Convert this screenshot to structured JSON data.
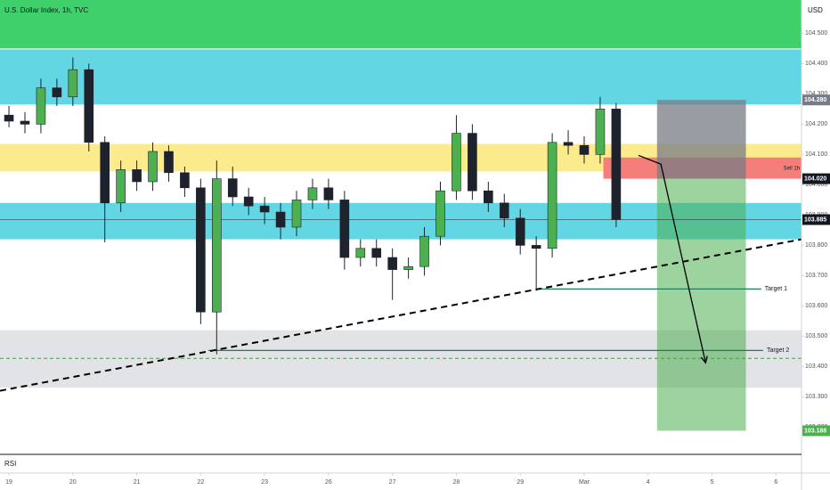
{
  "chart_data": {
    "type": "candlestick",
    "title": "U.S. Dollar Index, 1h, TVC",
    "currency": "USD",
    "pane_label": "RSI",
    "x": [
      0,
      0.25,
      0.5,
      0.75,
      1,
      1.25,
      1.5,
      1.75,
      2,
      2.25,
      2.5,
      2.75,
      3,
      3.25,
      3.5,
      3.75,
      4,
      4.25,
      4.5,
      4.75,
      5,
      5.25,
      5.5,
      5.75,
      6,
      6.25,
      6.5,
      6.75,
      7,
      7.25,
      7.5,
      7.75,
      8,
      8.25,
      8.5,
      8.75,
      9,
      9.25,
      9.5
    ],
    "open": [
      104.23,
      104.21,
      104.2,
      104.32,
      104.29,
      104.38,
      104.14,
      103.94,
      104.05,
      104.01,
      104.11,
      104.04,
      103.99,
      103.58,
      104.02,
      103.96,
      103.93,
      103.91,
      103.86,
      103.95,
      103.99,
      103.95,
      103.76,
      103.79,
      103.76,
      103.72,
      103.73,
      103.83,
      103.98,
      104.17,
      103.98,
      103.94,
      103.89,
      103.8,
      103.79,
      104.14,
      104.13,
      104.1,
      104.25
    ],
    "high": [
      104.26,
      104.24,
      104.35,
      104.35,
      104.42,
      104.4,
      104.16,
      104.08,
      104.08,
      104.14,
      104.13,
      104.06,
      104.02,
      104.08,
      104.06,
      103.99,
      103.96,
      103.94,
      103.98,
      104.02,
      104.02,
      103.98,
      103.82,
      103.82,
      103.79,
      103.76,
      103.86,
      104.01,
      104.23,
      104.2,
      104.01,
      103.97,
      103.92,
      103.83,
      104.17,
      104.18,
      104.16,
      104.29,
      104.27
    ],
    "low": [
      104.19,
      104.17,
      104.17,
      104.26,
      104.26,
      104.11,
      103.81,
      103.91,
      103.98,
      103.98,
      104.01,
      103.96,
      103.54,
      103.44,
      103.93,
      103.9,
      103.87,
      103.82,
      103.83,
      103.92,
      103.92,
      103.72,
      103.73,
      103.73,
      103.62,
      103.69,
      103.7,
      103.8,
      103.95,
      103.95,
      103.91,
      103.86,
      103.77,
      103.65,
      103.76,
      104.1,
      104.07,
      104.07,
      103.86
    ],
    "close": [
      104.21,
      104.2,
      104.32,
      104.29,
      104.38,
      104.14,
      103.94,
      104.05,
      104.01,
      104.11,
      104.04,
      103.99,
      103.58,
      104.02,
      103.96,
      103.93,
      103.91,
      103.86,
      103.95,
      103.99,
      103.95,
      103.76,
      103.79,
      103.76,
      103.72,
      103.73,
      103.83,
      103.98,
      104.17,
      103.98,
      103.94,
      103.89,
      103.8,
      103.79,
      104.14,
      104.13,
      104.1,
      104.25,
      103.885
    ],
    "up_color": "#4caf50",
    "down_color": "#1e222d",
    "xlim": [
      -0.14,
      12.4
    ],
    "xticks": [
      {
        "value": 0,
        "label": "19"
      },
      {
        "value": 1,
        "label": "20"
      },
      {
        "value": 2,
        "label": "21"
      },
      {
        "value": 3,
        "label": "22"
      },
      {
        "value": 4,
        "label": "23"
      },
      {
        "value": 5,
        "label": "26"
      },
      {
        "value": 6,
        "label": "27"
      },
      {
        "value": 7,
        "label": "28"
      },
      {
        "value": 8,
        "label": "29"
      },
      {
        "value": 9,
        "label": "Mar"
      },
      {
        "value": 10,
        "label": "4"
      },
      {
        "value": 11,
        "label": "5"
      },
      {
        "value": 12,
        "label": "6"
      }
    ],
    "ylim": [
      103.11,
      104.61
    ],
    "yticks": [
      {
        "value": 103.2,
        "label": "103.200"
      },
      {
        "value": 103.3,
        "label": "103.300"
      },
      {
        "value": 103.4,
        "label": "103.400"
      },
      {
        "value": 103.5,
        "label": "103.500"
      },
      {
        "value": 103.6,
        "label": "103.600"
      },
      {
        "value": 103.7,
        "label": "103.700"
      },
      {
        "value": 103.8,
        "label": "103.800"
      },
      {
        "value": 103.9,
        "label": "103.900"
      },
      {
        "value": 104.0,
        "label": "104.000"
      },
      {
        "value": 104.1,
        "label": "104.100"
      },
      {
        "value": 104.2,
        "label": "104.200"
      },
      {
        "value": 104.3,
        "label": "104.300"
      },
      {
        "value": 104.4,
        "label": "104.400"
      },
      {
        "value": 104.5,
        "label": "104.500"
      }
    ],
    "zones": [
      {
        "from": 104.45,
        "to": 104.61,
        "color": "#3fcf6b"
      },
      {
        "from": 104.265,
        "to": 104.447,
        "color": "#63d6e4"
      },
      {
        "from": 104.044,
        "to": 104.135,
        "color": "#fbeb8c"
      },
      {
        "from": 103.82,
        "to": 103.94,
        "color": "#63d6e4"
      },
      {
        "from": 103.33,
        "to": 103.52,
        "color": "#e1e3e6"
      }
    ],
    "sell_zone": {
      "from": 104.02,
      "to": 104.09,
      "x": [
        9.3,
        12.4
      ],
      "color": "#f47f7a",
      "label": "Sell 1h"
    },
    "trend_line": {
      "x": [
        -0.14,
        12.4
      ],
      "y": [
        103.32,
        103.82
      ]
    },
    "arrow": {
      "x": [
        9.85,
        10.2,
        10.9
      ],
      "y": [
        104.097,
        104.068,
        103.412
      ]
    },
    "targets": [
      {
        "name": "Target 1",
        "x": [
          8.3,
          11.77
        ],
        "value": 103.656
      },
      {
        "name": "Target 2",
        "x": [
          3.12,
          11.8
        ],
        "value": 103.453
      }
    ],
    "level_line": {
      "value": 103.427,
      "color": "#43a047"
    },
    "position": {
      "x": [
        10.14,
        11.53
      ],
      "stop": {
        "value": 104.28,
        "label": "104.280"
      },
      "entry": {
        "value": 104.02,
        "label": "104.020"
      },
      "target": {
        "value": 103.188,
        "label": "103.188"
      }
    },
    "last": {
      "value": 103.885,
      "label": "103.885"
    }
  }
}
